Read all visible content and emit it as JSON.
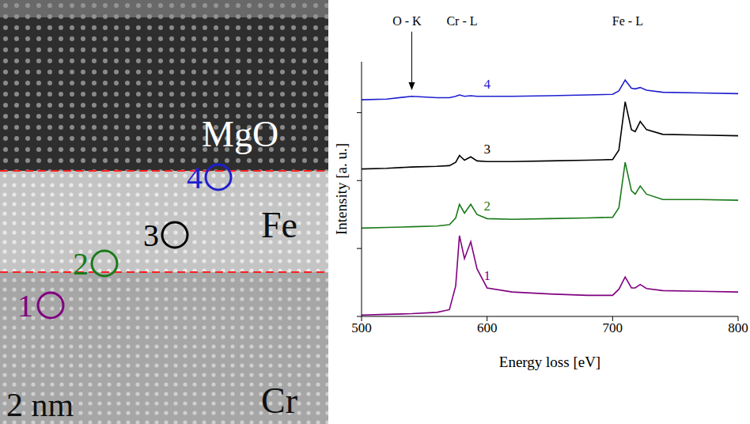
{
  "chart_data": {
    "type": "line",
    "x_label": "Energy loss [eV]",
    "y_label": "Intensity [a. u.]",
    "x": [
      500,
      520,
      540,
      560,
      570,
      575,
      578,
      582,
      587,
      592,
      600,
      620,
      650,
      680,
      700,
      705,
      710,
      715,
      718,
      722,
      727,
      740,
      770,
      800
    ],
    "series": [
      {
        "name": "1",
        "color": "#800080",
        "values": [
          0.02,
          0.03,
          0.04,
          0.06,
          0.1,
          0.45,
          1.19,
          0.85,
          1.1,
          0.7,
          0.42,
          0.36,
          0.33,
          0.31,
          0.31,
          0.4,
          0.58,
          0.42,
          0.42,
          0.47,
          0.41,
          0.38,
          0.37,
          0.36
        ]
      },
      {
        "name": "2",
        "color": "#1a7a1a",
        "values": [
          1.3,
          1.31,
          1.32,
          1.33,
          1.35,
          1.45,
          1.65,
          1.52,
          1.65,
          1.5,
          1.44,
          1.43,
          1.44,
          1.45,
          1.46,
          1.6,
          2.27,
          1.85,
          1.8,
          1.92,
          1.8,
          1.72,
          1.72,
          1.71
        ]
      },
      {
        "name": "3",
        "color": "#000000",
        "values": [
          2.17,
          2.18,
          2.2,
          2.21,
          2.22,
          2.27,
          2.37,
          2.3,
          2.35,
          2.29,
          2.28,
          2.28,
          2.29,
          2.3,
          2.31,
          2.45,
          3.16,
          2.75,
          2.72,
          2.87,
          2.75,
          2.68,
          2.67,
          2.66
        ]
      },
      {
        "name": "4",
        "color": "#1f1fd0",
        "values": [
          3.19,
          3.2,
          3.24,
          3.22,
          3.22,
          3.24,
          3.26,
          3.24,
          3.25,
          3.24,
          3.24,
          3.24,
          3.25,
          3.26,
          3.27,
          3.32,
          3.48,
          3.36,
          3.35,
          3.37,
          3.33,
          3.3,
          3.29,
          3.28
        ]
      }
    ],
    "xlim": [
      500,
      800
    ],
    "xticks": [
      500,
      600,
      700,
      800
    ],
    "ylim": [
      0,
      3.75
    ],
    "yticks": [
      0,
      1,
      2,
      3
    ],
    "tick_labels": "x",
    "grid": false,
    "annotations": [
      {
        "text": "O - K",
        "x": 540
      }
    ],
    "edge_labels": [
      {
        "text": "Cr - L",
        "x": 580
      },
      {
        "text": "Fe - L",
        "x": 712
      }
    ]
  },
  "image": {
    "layers": [
      "MgO",
      "Fe",
      "Cr"
    ],
    "scale_bar": "2 nm",
    "points": [
      {
        "label": "1",
        "color": "#800080"
      },
      {
        "label": "2",
        "color": "#1a7a1a"
      },
      {
        "label": "3",
        "color": "#000000"
      },
      {
        "label": "4",
        "color": "#1f1fd0"
      }
    ]
  }
}
